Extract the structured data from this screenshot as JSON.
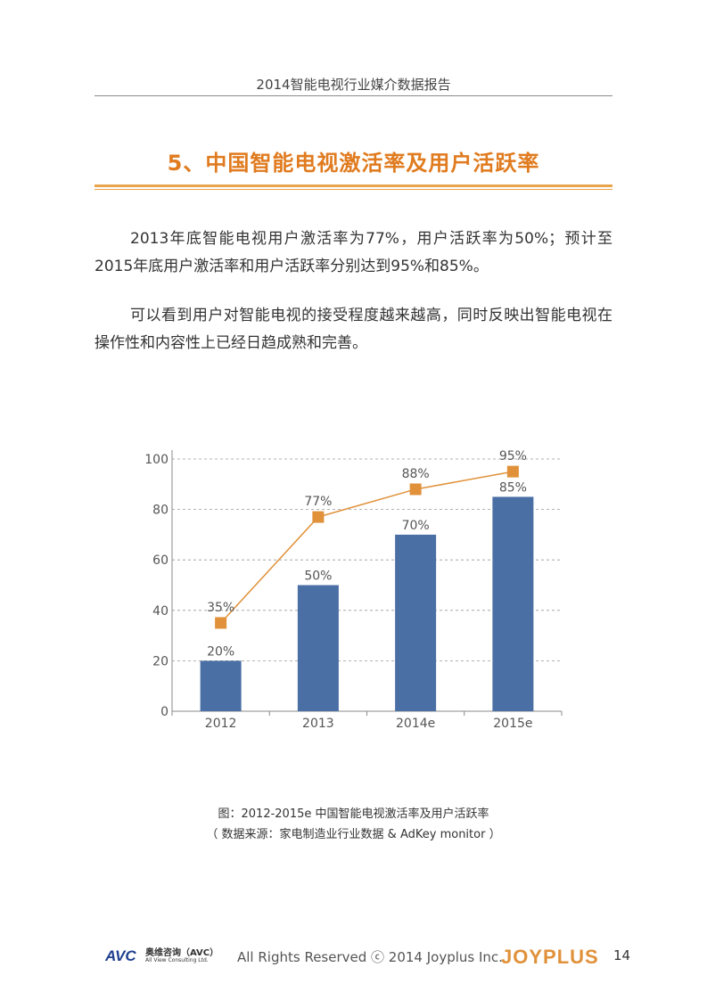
{
  "header": {
    "title": "2014智能电视行业媒介数据报告"
  },
  "section": {
    "title": "5、中国智能电视激活率及用户活跃率"
  },
  "paragraphs": [
    "2013年底智能电视用户激活率为77%，用户活跃率为50%；预计至2015年底用户激活率和用户活跃率分别达到95%和85%。",
    "可以看到用户对智能电视的接受程度越来越高，同时反映出智能电视在操作性和内容性上已经日趋成熟和完善。"
  ],
  "chart_data": {
    "type": "bar",
    "categories": [
      "2012",
      "2013",
      "2014e",
      "2015e"
    ],
    "series": [
      {
        "kind": "bar",
        "values": [
          20,
          50,
          70,
          85
        ],
        "labels": [
          "20%",
          "50%",
          "70%",
          "85%"
        ],
        "color": "#4a6fa5"
      },
      {
        "kind": "line",
        "values": [
          35,
          77,
          88,
          95
        ],
        "labels": [
          "35%",
          "77%",
          "88%",
          "95%"
        ],
        "color": "#e0913a"
      }
    ],
    "yticks": [
      "0",
      "20",
      "40",
      "60",
      "80",
      "100"
    ],
    "ylim": [
      0,
      100
    ],
    "grid": true,
    "title": "",
    "xlabel": "",
    "ylabel": ""
  },
  "caption": {
    "line1": "图：2012-2015e 中国智能电视激活率及用户活跃率",
    "line2": "（ 数据来源：家电制造业行业数据 & AdKey monitor ）"
  },
  "footer": {
    "avc_logo_text": "AVC",
    "avc_cn": "奥维咨询（AVC）",
    "avc_en": "All View Consulting Ltd.",
    "rights": "All Rights Reserved  ⓒ  2014 Joyplus Inc.",
    "joyplus_logo_text": "JOYPLUS",
    "page_number": "14"
  }
}
